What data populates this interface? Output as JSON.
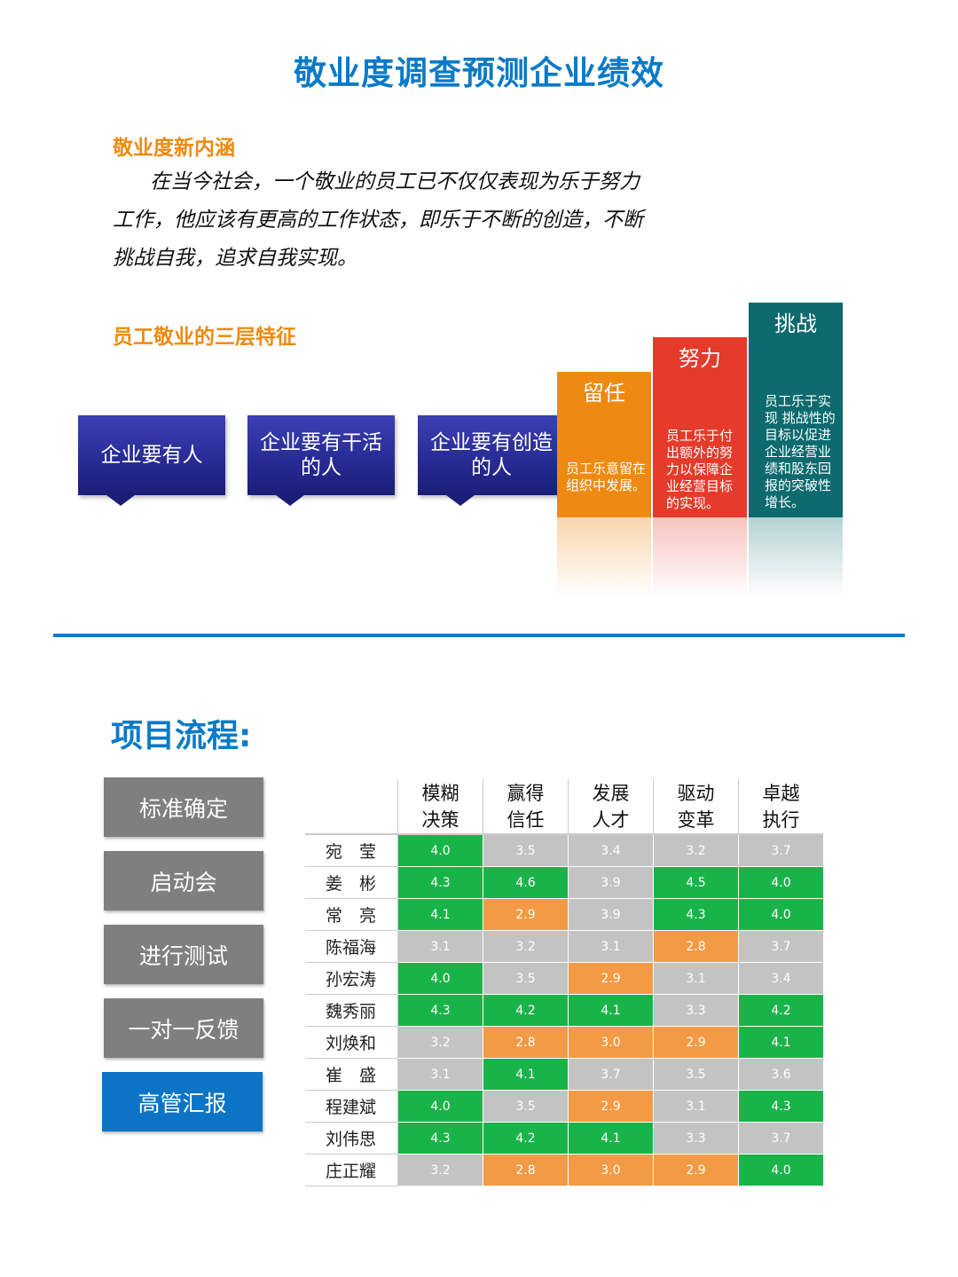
{
  "title": "敬业度调查预测企业绩效",
  "section1": {
    "heading": "敬业度新内涵",
    "paragraph_lines": [
      "在当今社会，一个敬业的员工已不仅仅表现为乐于努力",
      "工作，他应该有更高的工作状态，即乐于不断的创造，不断",
      "挑战自我，追求自我实现。"
    ]
  },
  "section2": {
    "heading": "员工敬业的三层特征",
    "boxes": [
      {
        "line1": "企业要有人",
        "line2": ""
      },
      {
        "line1": "企业要有干活",
        "line2": "的人"
      },
      {
        "line1": "企业要有创造",
        "line2": "的人"
      }
    ],
    "columns": [
      {
        "caption": "留任",
        "desc": "员工乐意留在组织中发展。",
        "color": "#ee8a12"
      },
      {
        "caption": "努力",
        "desc": "员工乐于付出额外的努力以保障企业经营目标的实现。",
        "color": "#e63a2a"
      },
      {
        "caption": "挑战",
        "desc": "员工乐于实现 挑战性的目标以促进企业经营业绩和股东回报的突破性增长。",
        "color": "#0d6a6e"
      }
    ]
  },
  "process": {
    "heading": "项目流程:",
    "steps": [
      "标准确定",
      "启动会",
      "进行测试",
      "一对一反馈",
      "高管汇报"
    ]
  },
  "table": {
    "headers": [
      [
        "模糊",
        "决策"
      ],
      [
        "赢得",
        "信任"
      ],
      [
        "发展",
        "人才"
      ],
      [
        "驱动",
        "变革"
      ],
      [
        "卓越",
        "执行"
      ]
    ],
    "rows": [
      {
        "name": "宛　莹",
        "values": [
          "4.0",
          "3.5",
          "3.4",
          "3.2",
          "3.7"
        ],
        "colors": [
          "g",
          "y",
          "y",
          "y",
          "y"
        ]
      },
      {
        "name": "姜　彬",
        "values": [
          "4.3",
          "4.6",
          "3.9",
          "4.5",
          "4.0"
        ],
        "colors": [
          "g",
          "g",
          "y",
          "g",
          "g"
        ]
      },
      {
        "name": "常　亮",
        "values": [
          "4.1",
          "2.9",
          "3.9",
          "4.3",
          "4.0"
        ],
        "colors": [
          "g",
          "o",
          "y",
          "g",
          "g"
        ]
      },
      {
        "name": "陈福海",
        "values": [
          "3.1",
          "3.2",
          "3.1",
          "2.8",
          "3.7"
        ],
        "colors": [
          "y",
          "y",
          "y",
          "o",
          "y"
        ]
      },
      {
        "name": "孙宏涛",
        "values": [
          "4.0",
          "3.5",
          "2.9",
          "3.1",
          "3.4"
        ],
        "colors": [
          "g",
          "y",
          "o",
          "y",
          "y"
        ]
      },
      {
        "name": "魏秀丽",
        "values": [
          "4.3",
          "4.2",
          "4.1",
          "3.3",
          "4.2"
        ],
        "colors": [
          "g",
          "g",
          "g",
          "y",
          "g"
        ]
      },
      {
        "name": "刘焕和",
        "values": [
          "3.2",
          "2.8",
          "3.0",
          "2.9",
          "4.1"
        ],
        "colors": [
          "y",
          "o",
          "o",
          "o",
          "g"
        ]
      },
      {
        "name": "崔　盛",
        "values": [
          "3.1",
          "4.1",
          "3.7",
          "3.5",
          "3.6"
        ],
        "colors": [
          "y",
          "g",
          "y",
          "y",
          "y"
        ]
      },
      {
        "name": "程建斌",
        "values": [
          "4.0",
          "3.5",
          "2.9",
          "3.1",
          "4.3"
        ],
        "colors": [
          "g",
          "y",
          "o",
          "y",
          "g"
        ]
      },
      {
        "name": "刘伟思",
        "values": [
          "4.3",
          "4.2",
          "4.1",
          "3.3",
          "3.7"
        ],
        "colors": [
          "g",
          "g",
          "g",
          "y",
          "y"
        ]
      },
      {
        "name": "庄正耀",
        "values": [
          "3.2",
          "2.8",
          "3.0",
          "2.9",
          "4.0"
        ],
        "colors": [
          "y",
          "o",
          "o",
          "o",
          "g"
        ]
      }
    ]
  }
}
